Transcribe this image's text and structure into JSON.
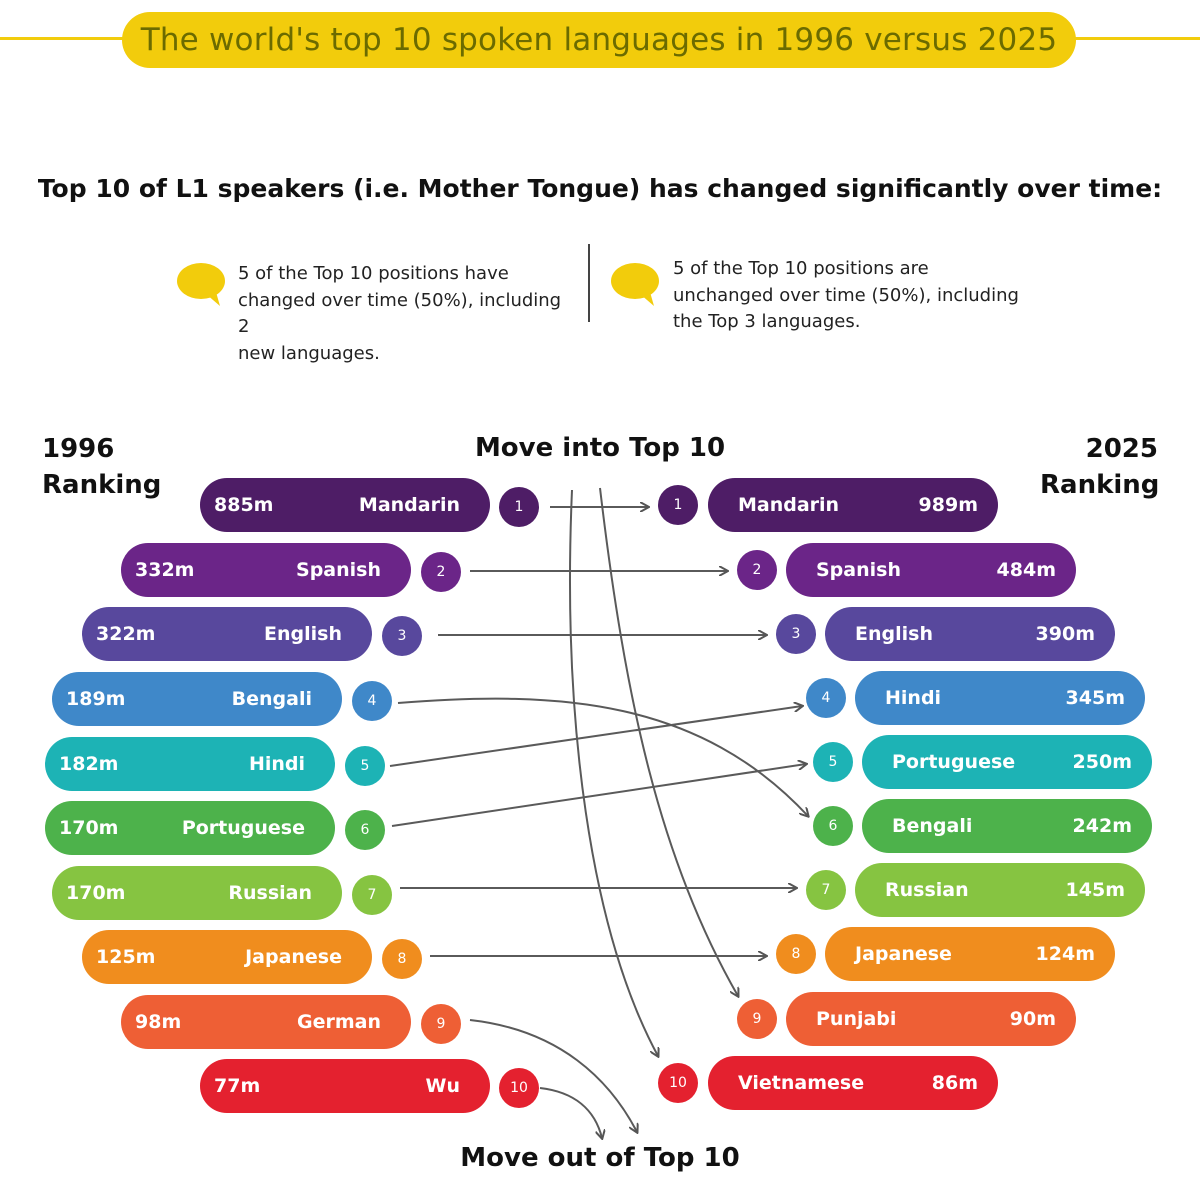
{
  "title": "The world's top 10 spoken languages in 1996 versus 2025",
  "subtitle": "Top 10 of L1 speakers (i.e. Mother Tongue) has changed significantly over time:",
  "notes": {
    "left": [
      "5 of the Top 10 positions have",
      "changed over time (50%), including 2",
      "new languages."
    ],
    "right": [
      "5 of the Top 10 positions are",
      "unchanged over time (50%), including",
      "the Top 3 languages."
    ]
  },
  "labels": {
    "left_heading": [
      "1996",
      "Ranking"
    ],
    "right_heading": [
      "2025",
      "Ranking"
    ],
    "move_in": "Move into Top 10",
    "move_out": "Move out of Top 10"
  },
  "icon": "speech-bubble-icon",
  "colors": {
    "accent": "#f2cc0c",
    "ranks": [
      "#4e1d66",
      "#6b2588",
      "#58489d",
      "#3f88c9",
      "#1db3b5",
      "#4db24b",
      "#86c441",
      "#f08d1e",
      "#ee5f35",
      "#e4212f"
    ]
  },
  "ranking_1996": [
    {
      "rank": "1",
      "language": "Mandarin",
      "speakers": "885m"
    },
    {
      "rank": "2",
      "language": "Spanish",
      "speakers": "332m"
    },
    {
      "rank": "3",
      "language": "English",
      "speakers": "322m"
    },
    {
      "rank": "4",
      "language": "Bengali",
      "speakers": "189m"
    },
    {
      "rank": "5",
      "language": "Hindi",
      "speakers": "182m"
    },
    {
      "rank": "6",
      "language": "Portuguese",
      "speakers": "170m"
    },
    {
      "rank": "7",
      "language": "Russian",
      "speakers": "170m"
    },
    {
      "rank": "8",
      "language": "Japanese",
      "speakers": "125m"
    },
    {
      "rank": "9",
      "language": "German",
      "speakers": "98m"
    },
    {
      "rank": "10",
      "language": "Wu",
      "speakers": "77m"
    }
  ],
  "ranking_2025": [
    {
      "rank": "1",
      "language": "Mandarin",
      "speakers": "989m"
    },
    {
      "rank": "2",
      "language": "Spanish",
      "speakers": "484m"
    },
    {
      "rank": "3",
      "language": "English",
      "speakers": "390m"
    },
    {
      "rank": "4",
      "language": "Hindi",
      "speakers": "345m"
    },
    {
      "rank": "5",
      "language": "Portuguese",
      "speakers": "250m"
    },
    {
      "rank": "6",
      "language": "Bengali",
      "speakers": "242m"
    },
    {
      "rank": "7",
      "language": "Russian",
      "speakers": "145m"
    },
    {
      "rank": "8",
      "language": "Japanese",
      "speakers": "124m"
    },
    {
      "rank": "9",
      "language": "Punjabi",
      "speakers": "90m"
    },
    {
      "rank": "10",
      "language": "Vietnamese",
      "speakers": "86m"
    }
  ]
}
